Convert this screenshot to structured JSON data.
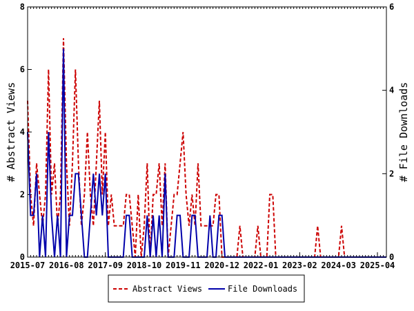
{
  "chart_data": {
    "type": "line",
    "title": "",
    "ylabel_left": "# Abstract Views",
    "ylabel_right": "# File Downloads",
    "ylim_left": [
      0,
      8
    ],
    "ylim_right": [
      0,
      6
    ],
    "yticks_left": [
      "0",
      "2",
      "4",
      "6",
      "8"
    ],
    "yticks_right": [
      "0",
      "2",
      "4",
      "6"
    ],
    "xrange": [
      "2015-07",
      "2025-07"
    ],
    "xtick_labels": [
      "2015-07",
      "2016-08",
      "2017-09",
      "2018-10",
      "2019-11",
      "2020-12",
      "2022-01",
      "2023-02",
      "2024-03",
      "2025-04"
    ],
    "legend_position": "bottom-center",
    "series": [
      {
        "name": "Abstract Views",
        "axis": "left",
        "color": "#cc0000",
        "style": "dashed",
        "x": [
          "2015-07",
          "2015-08",
          "2015-09",
          "2015-10",
          "2015-11",
          "2015-12",
          "2016-01",
          "2016-02",
          "2016-03",
          "2016-04",
          "2016-05",
          "2016-06",
          "2016-07",
          "2016-08",
          "2016-09",
          "2016-10",
          "2016-11",
          "2016-12",
          "2017-01",
          "2017-02",
          "2017-03",
          "2017-04",
          "2017-05",
          "2017-06",
          "2017-07",
          "2017-08",
          "2017-09",
          "2017-10",
          "2017-11",
          "2017-12",
          "2018-01",
          "2018-02",
          "2018-03",
          "2018-04",
          "2018-05",
          "2018-06",
          "2018-07",
          "2018-08",
          "2018-09",
          "2018-10",
          "2018-11",
          "2018-12",
          "2019-01",
          "2019-02",
          "2019-03",
          "2019-04",
          "2019-05",
          "2019-06",
          "2019-07",
          "2019-08",
          "2019-09",
          "2019-10",
          "2019-11",
          "2019-12",
          "2020-01",
          "2020-02",
          "2020-03",
          "2020-04",
          "2020-05",
          "2020-06",
          "2020-07",
          "2020-08",
          "2020-09",
          "2020-10",
          "2020-11",
          "2020-12",
          "2021-01",
          "2021-02",
          "2021-03",
          "2021-04",
          "2021-05",
          "2021-06",
          "2021-07",
          "2021-08",
          "2021-09",
          "2021-10",
          "2021-11",
          "2021-12",
          "2022-01",
          "2022-02",
          "2022-03",
          "2022-04",
          "2022-05",
          "2022-06",
          "2022-07",
          "2022-08",
          "2022-09",
          "2022-10",
          "2022-11",
          "2022-12",
          "2023-01",
          "2023-02",
          "2023-03",
          "2023-04",
          "2023-05",
          "2023-06",
          "2023-07",
          "2023-08",
          "2023-09",
          "2023-10",
          "2023-11",
          "2023-12",
          "2024-01",
          "2024-02",
          "2024-03",
          "2024-04",
          "2024-05",
          "2024-06",
          "2024-07",
          "2024-08",
          "2024-09",
          "2024-10",
          "2024-11",
          "2024-12",
          "2025-01",
          "2025-02",
          "2025-03",
          "2025-04",
          "2025-05",
          "2025-06",
          "2025-07"
        ],
        "values": [
          5,
          2,
          1,
          3,
          2,
          1,
          2,
          6,
          2,
          3,
          1,
          2,
          7,
          3,
          1,
          3,
          6,
          3,
          1,
          2,
          4,
          2,
          1,
          3,
          5,
          2,
          4,
          1,
          2,
          1,
          1,
          1,
          1,
          2,
          2,
          1,
          0,
          2,
          0,
          1,
          3,
          0,
          2,
          2,
          3,
          1,
          3,
          0,
          1,
          2,
          2,
          3,
          4,
          2,
          1,
          2,
          1,
          3,
          1,
          1,
          1,
          1,
          1,
          2,
          2,
          0,
          0,
          0,
          0,
          0,
          0,
          1,
          0,
          0,
          0,
          0,
          0,
          1,
          0,
          0,
          0,
          2,
          2,
          0,
          0,
          0,
          0,
          0,
          0,
          0,
          0,
          0,
          0,
          0,
          0,
          0,
          0,
          1,
          0,
          0,
          0,
          0,
          0,
          0,
          0,
          1,
          0,
          0,
          0,
          0,
          0,
          0,
          0,
          0,
          0,
          0,
          0,
          0,
          0,
          0,
          0
        ]
      },
      {
        "name": "File Downloads",
        "axis": "right",
        "color": "#0000aa",
        "style": "solid",
        "x": [
          "2015-07",
          "2015-08",
          "2015-09",
          "2015-10",
          "2015-11",
          "2015-12",
          "2016-01",
          "2016-02",
          "2016-03",
          "2016-04",
          "2016-05",
          "2016-06",
          "2016-07",
          "2016-08",
          "2016-09",
          "2016-10",
          "2016-11",
          "2016-12",
          "2017-01",
          "2017-02",
          "2017-03",
          "2017-04",
          "2017-05",
          "2017-06",
          "2017-07",
          "2017-08",
          "2017-09",
          "2017-10",
          "2017-11",
          "2017-12",
          "2018-01",
          "2018-02",
          "2018-03",
          "2018-04",
          "2018-05",
          "2018-06",
          "2018-07",
          "2018-08",
          "2018-09",
          "2018-10",
          "2018-11",
          "2018-12",
          "2019-01",
          "2019-02",
          "2019-03",
          "2019-04",
          "2019-05",
          "2019-06",
          "2019-07",
          "2019-08",
          "2019-09",
          "2019-10",
          "2019-11",
          "2019-12",
          "2020-01",
          "2020-02",
          "2020-03",
          "2020-04",
          "2020-05",
          "2020-06",
          "2020-07",
          "2020-08",
          "2020-09",
          "2020-10",
          "2020-11",
          "2020-12",
          "2021-01",
          "2021-02",
          "2021-03",
          "2021-04",
          "2021-05",
          "2021-06",
          "2021-07",
          "2021-08",
          "2021-09",
          "2021-10",
          "2021-11",
          "2021-12",
          "2022-01",
          "2022-02",
          "2022-03",
          "2022-04",
          "2022-05",
          "2022-06",
          "2022-07",
          "2022-08",
          "2022-09",
          "2022-10",
          "2022-11",
          "2022-12",
          "2023-01",
          "2023-02",
          "2023-03",
          "2023-04",
          "2023-05",
          "2023-06",
          "2023-07",
          "2023-08",
          "2023-09",
          "2023-10",
          "2023-11",
          "2023-12",
          "2024-01",
          "2024-02",
          "2024-03",
          "2024-04",
          "2024-05",
          "2024-06",
          "2024-07",
          "2024-08",
          "2024-09",
          "2024-10",
          "2024-11",
          "2024-12",
          "2025-01",
          "2025-02",
          "2025-03",
          "2025-04",
          "2025-05",
          "2025-06",
          "2025-07"
        ],
        "values": [
          3,
          1,
          1,
          2,
          0,
          1,
          0,
          3,
          1,
          0,
          1,
          0,
          5,
          0,
          1,
          1,
          2,
          2,
          1,
          0,
          0,
          1,
          2,
          1,
          2,
          1,
          2,
          0,
          0,
          0,
          0,
          0,
          0,
          1,
          1,
          0,
          0,
          0,
          0,
          0,
          1,
          0,
          1,
          0,
          1,
          0,
          2,
          0,
          0,
          0,
          1,
          1,
          0,
          0,
          0,
          1,
          1,
          0,
          0,
          0,
          0,
          1,
          0,
          0,
          1,
          1,
          0,
          0,
          0,
          0,
          0,
          0,
          0,
          0,
          0,
          0,
          0,
          0,
          0,
          0,
          0,
          0,
          0,
          0,
          0,
          0,
          0,
          0,
          0,
          0,
          0,
          0,
          0,
          0,
          0,
          0,
          0,
          0,
          0,
          0,
          0,
          0,
          0,
          0,
          0,
          0,
          0,
          0,
          0,
          0,
          0,
          0,
          0,
          0,
          0,
          0,
          0,
          0,
          0,
          0,
          0
        ]
      }
    ]
  }
}
